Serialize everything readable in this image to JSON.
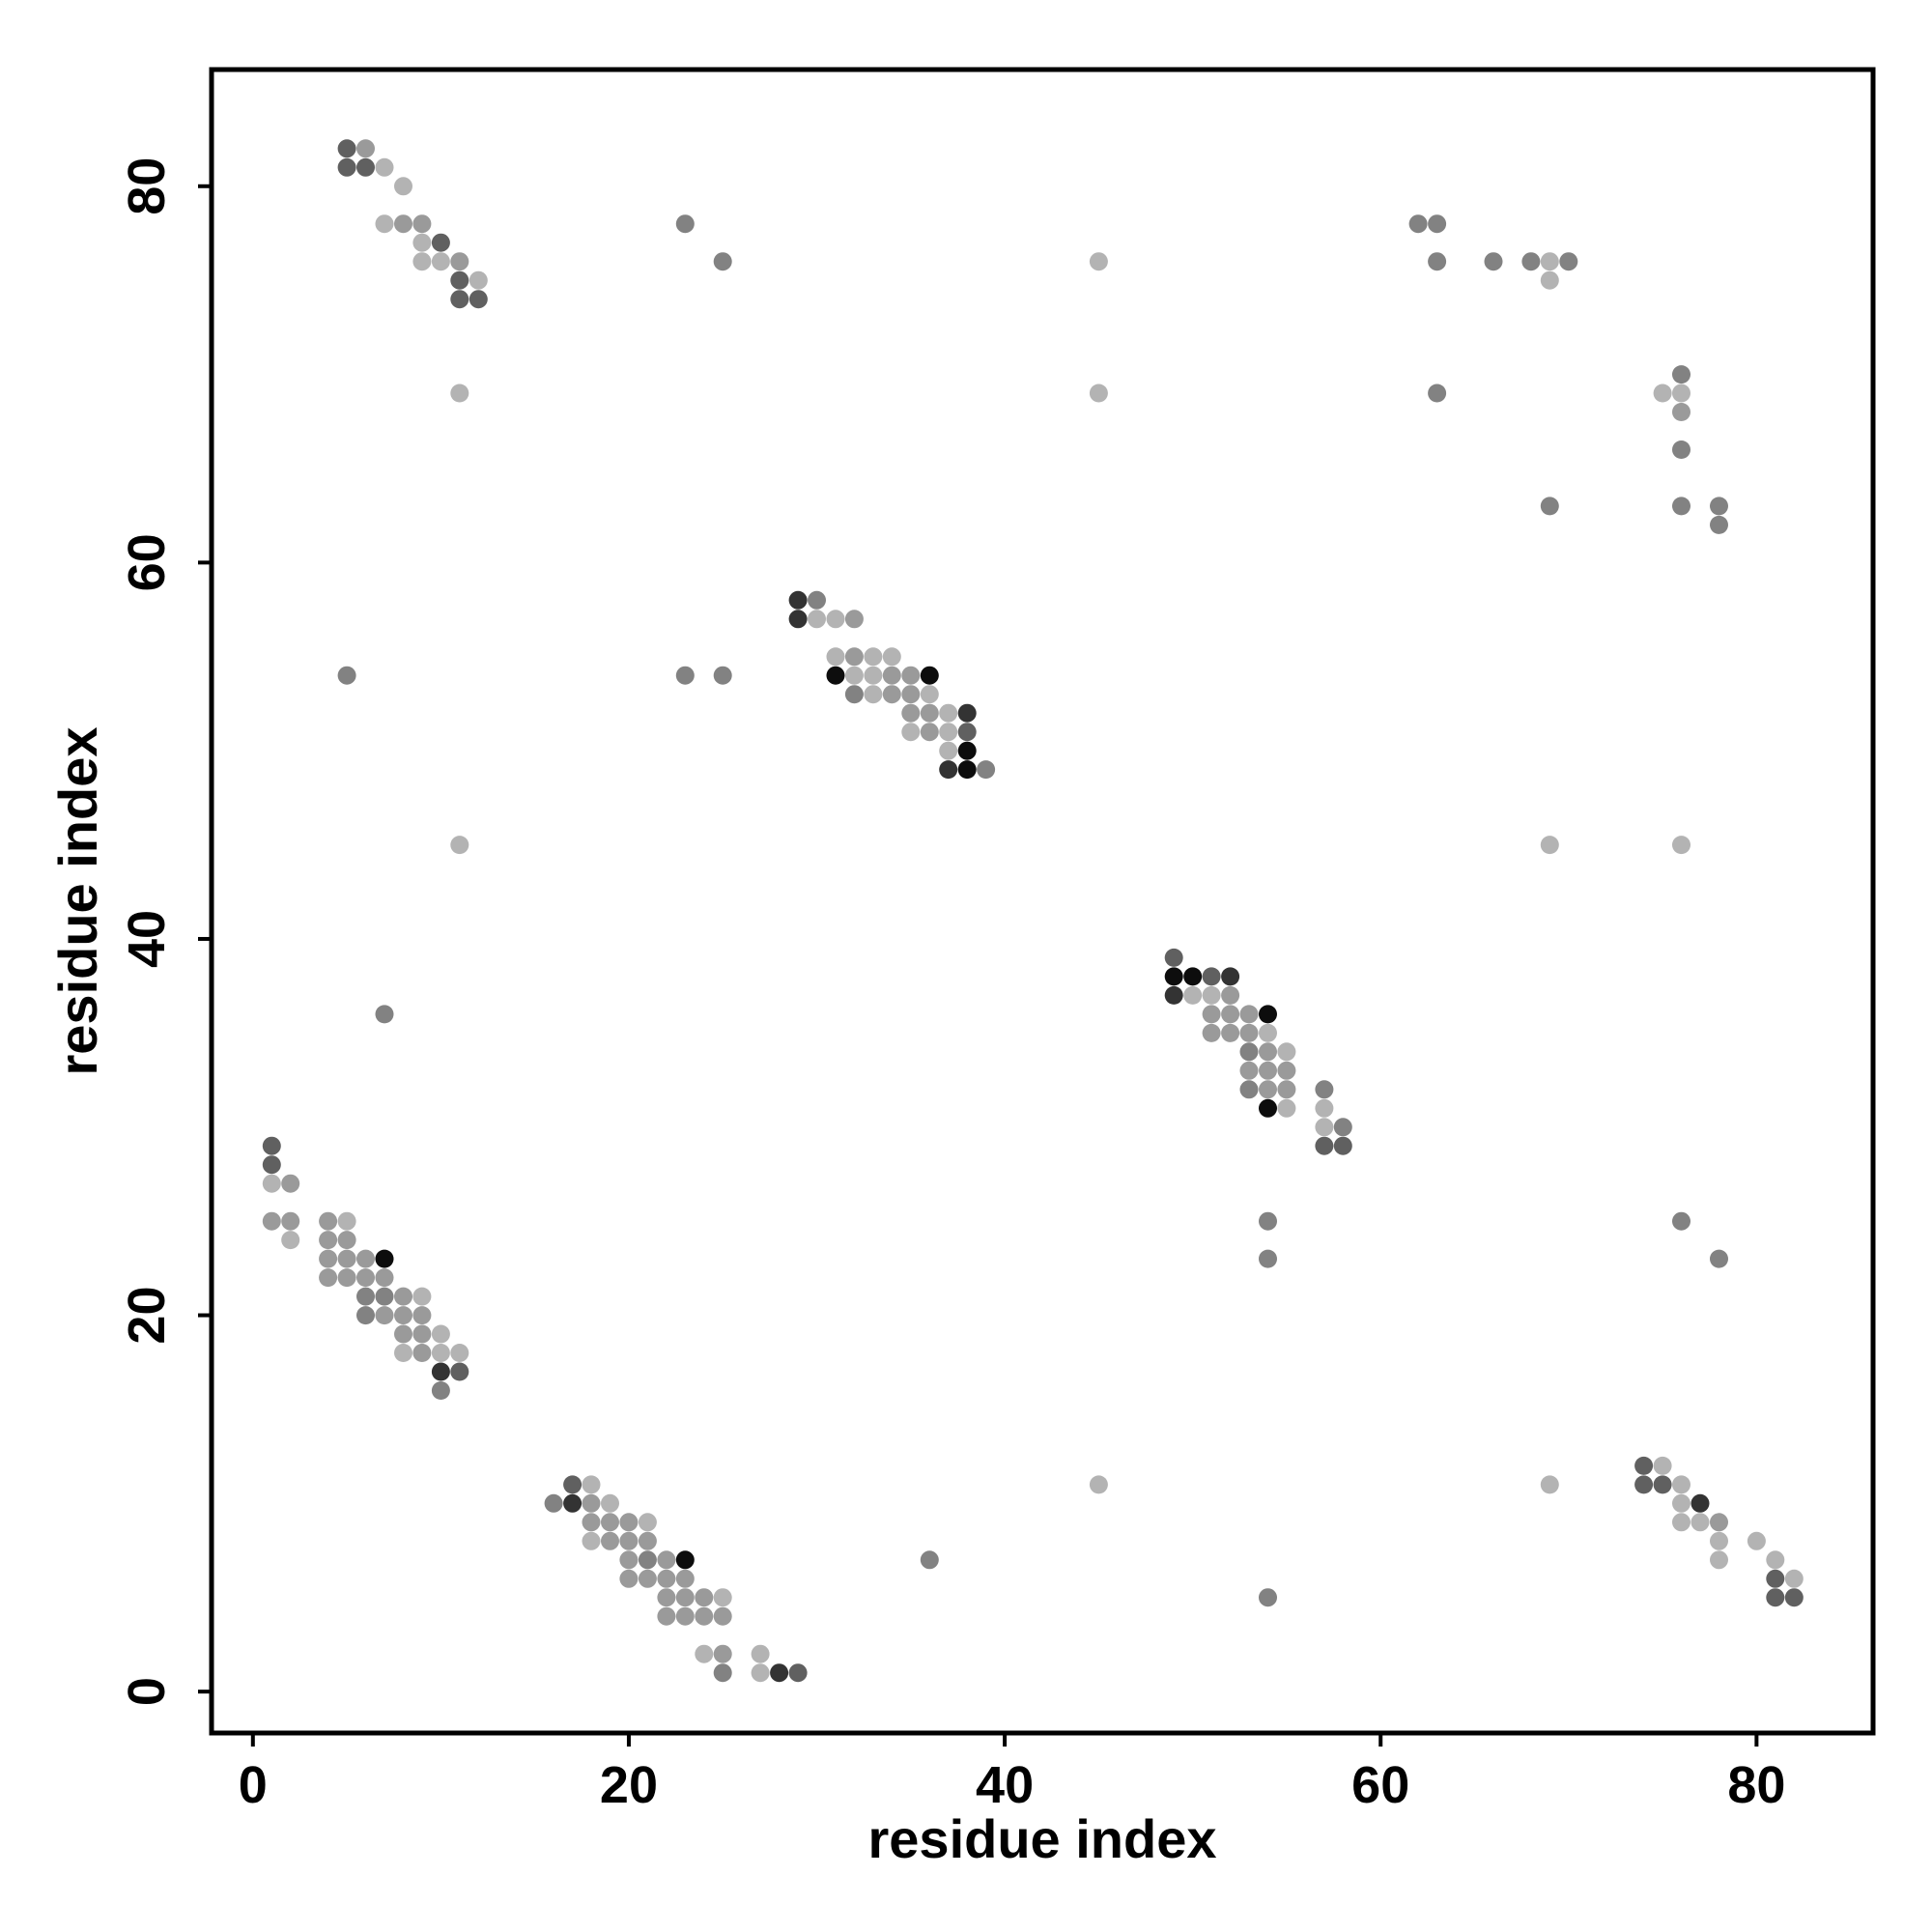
{
  "chart_data": {
    "type": "scatter",
    "title": "",
    "xlabel": "residue index",
    "ylabel": "residue index",
    "xlim": [
      -2.2,
      86.2
    ],
    "ylim": [
      -2.2,
      86.2
    ],
    "x_ticks": [
      0,
      20,
      40,
      60,
      80
    ],
    "y_ticks": [
      0,
      20,
      40,
      60,
      80
    ],
    "x_tick_labels": [
      "0",
      "20",
      "40",
      "60",
      "80"
    ],
    "y_tick_labels": [
      "0",
      "20",
      "40",
      "60",
      "80"
    ],
    "grid": false,
    "legend": "none",
    "shade_colors": {
      "1": "#b3b3b3",
      "2": "#9a9a9a",
      "3": "#828282",
      "4": "#606060",
      "5": "#333333",
      "6": "#0d0d0d"
    },
    "points": [
      [
        5,
        82,
        4
      ],
      [
        6,
        82,
        2
      ],
      [
        5,
        81,
        4
      ],
      [
        6,
        81,
        4
      ],
      [
        7,
        81,
        1
      ],
      [
        8,
        80,
        1
      ],
      [
        7,
        78,
        1
      ],
      [
        8,
        78,
        2
      ],
      [
        9,
        78,
        2
      ],
      [
        9,
        77,
        1
      ],
      [
        10,
        77,
        4
      ],
      [
        9,
        76,
        1
      ],
      [
        10,
        76,
        1
      ],
      [
        11,
        76,
        2
      ],
      [
        11,
        75,
        4
      ],
      [
        12,
        75,
        1
      ],
      [
        11,
        74,
        4
      ],
      [
        12,
        74,
        4
      ],
      [
        11,
        69,
        1
      ],
      [
        5,
        54,
        3
      ],
      [
        11,
        45,
        1
      ],
      [
        7,
        36,
        3
      ],
      [
        1,
        29,
        4
      ],
      [
        1,
        28,
        4
      ],
      [
        1,
        27,
        1
      ],
      [
        2,
        27,
        2
      ],
      [
        1,
        25,
        2
      ],
      [
        2,
        25,
        2
      ],
      [
        2,
        24,
        1
      ],
      [
        4,
        25,
        2
      ],
      [
        5,
        25,
        1
      ],
      [
        4,
        24,
        2
      ],
      [
        5,
        24,
        2
      ],
      [
        4,
        23,
        2
      ],
      [
        5,
        23,
        2
      ],
      [
        6,
        23,
        2
      ],
      [
        7,
        23,
        6
      ],
      [
        4,
        22,
        2
      ],
      [
        5,
        22,
        2
      ],
      [
        6,
        22,
        2
      ],
      [
        7,
        22,
        2
      ],
      [
        6,
        21,
        3
      ],
      [
        7,
        21,
        3
      ],
      [
        8,
        21,
        2
      ],
      [
        9,
        21,
        1
      ],
      [
        6,
        20,
        3
      ],
      [
        7,
        20,
        2
      ],
      [
        8,
        20,
        2
      ],
      [
        9,
        20,
        2
      ],
      [
        8,
        19,
        2
      ],
      [
        9,
        19,
        2
      ],
      [
        10,
        19,
        1
      ],
      [
        8,
        18,
        1
      ],
      [
        9,
        18,
        2
      ],
      [
        10,
        18,
        1
      ],
      [
        11,
        18,
        1
      ],
      [
        10,
        17,
        5
      ],
      [
        11,
        17,
        4
      ],
      [
        10,
        16,
        3
      ],
      [
        16,
        10,
        3
      ],
      [
        17,
        11,
        4
      ],
      [
        17,
        10,
        5
      ],
      [
        18,
        11,
        1
      ],
      [
        18,
        10,
        2
      ],
      [
        19,
        10,
        1
      ],
      [
        18,
        9,
        2
      ],
      [
        19,
        9,
        2
      ],
      [
        20,
        9,
        2
      ],
      [
        21,
        9,
        1
      ],
      [
        18,
        8,
        1
      ],
      [
        19,
        8,
        2
      ],
      [
        20,
        8,
        2
      ],
      [
        21,
        8,
        2
      ],
      [
        20,
        7,
        2
      ],
      [
        21,
        7,
        3
      ],
      [
        22,
        7,
        2
      ],
      [
        23,
        7,
        6
      ],
      [
        20,
        6,
        2
      ],
      [
        21,
        6,
        2
      ],
      [
        22,
        6,
        2
      ],
      [
        23,
        6,
        2
      ],
      [
        22,
        5,
        2
      ],
      [
        23,
        5,
        2
      ],
      [
        24,
        5,
        2
      ],
      [
        25,
        5,
        1
      ],
      [
        22,
        4,
        2
      ],
      [
        23,
        4,
        2
      ],
      [
        24,
        4,
        2
      ],
      [
        25,
        4,
        2
      ],
      [
        24,
        2,
        1
      ],
      [
        25,
        2,
        2
      ],
      [
        25,
        1,
        3
      ],
      [
        27,
        2,
        1
      ],
      [
        27,
        1,
        1
      ],
      [
        28,
        1,
        5
      ],
      [
        29,
        1,
        4
      ],
      [
        23,
        78,
        3
      ],
      [
        25,
        76,
        3
      ],
      [
        23,
        54,
        3
      ],
      [
        25,
        54,
        3
      ],
      [
        29,
        58,
        5
      ],
      [
        30,
        58,
        3
      ],
      [
        29,
        57,
        5
      ],
      [
        30,
        57,
        1
      ],
      [
        31,
        57,
        1
      ],
      [
        32,
        57,
        2
      ],
      [
        31,
        55,
        1
      ],
      [
        32,
        55,
        2
      ],
      [
        33,
        55,
        1
      ],
      [
        34,
        55,
        1
      ],
      [
        31,
        54,
        6
      ],
      [
        32,
        54,
        1
      ],
      [
        33,
        54,
        1
      ],
      [
        34,
        54,
        2
      ],
      [
        35,
        54,
        2
      ],
      [
        36,
        54,
        6
      ],
      [
        32,
        53,
        3
      ],
      [
        33,
        53,
        1
      ],
      [
        34,
        53,
        2
      ],
      [
        35,
        53,
        2
      ],
      [
        36,
        53,
        1
      ],
      [
        35,
        52,
        2
      ],
      [
        36,
        52,
        2
      ],
      [
        37,
        52,
        1
      ],
      [
        38,
        52,
        5
      ],
      [
        35,
        51,
        1
      ],
      [
        36,
        51,
        2
      ],
      [
        37,
        51,
        1
      ],
      [
        38,
        51,
        4
      ],
      [
        37,
        50,
        1
      ],
      [
        38,
        50,
        6
      ],
      [
        37,
        49,
        5
      ],
      [
        38,
        49,
        6
      ],
      [
        39,
        49,
        3
      ],
      [
        36,
        7,
        3
      ],
      [
        45,
        76,
        1
      ],
      [
        45,
        69,
        1
      ],
      [
        45,
        11,
        1
      ],
      [
        49,
        39,
        4
      ],
      [
        49,
        38,
        6
      ],
      [
        50,
        38,
        6
      ],
      [
        51,
        38,
        4
      ],
      [
        52,
        38,
        5
      ],
      [
        49,
        37,
        5
      ],
      [
        50,
        37,
        1
      ],
      [
        51,
        37,
        1
      ],
      [
        52,
        37,
        2
      ],
      [
        51,
        36,
        2
      ],
      [
        52,
        36,
        2
      ],
      [
        53,
        36,
        2
      ],
      [
        54,
        36,
        6
      ],
      [
        51,
        35,
        2
      ],
      [
        52,
        35,
        2
      ],
      [
        53,
        35,
        2
      ],
      [
        54,
        35,
        1
      ],
      [
        53,
        34,
        3
      ],
      [
        54,
        34,
        2
      ],
      [
        55,
        34,
        1
      ],
      [
        53,
        33,
        2
      ],
      [
        54,
        33,
        2
      ],
      [
        55,
        33,
        2
      ],
      [
        53,
        32,
        3
      ],
      [
        54,
        32,
        2
      ],
      [
        55,
        32,
        2
      ],
      [
        54,
        31,
        6
      ],
      [
        55,
        31,
        1
      ],
      [
        57,
        32,
        3
      ],
      [
        57,
        31,
        1
      ],
      [
        57,
        30,
        1
      ],
      [
        58,
        30,
        3
      ],
      [
        57,
        29,
        4
      ],
      [
        58,
        29,
        4
      ],
      [
        54,
        25,
        3
      ],
      [
        54,
        23,
        3
      ],
      [
        54,
        5,
        3
      ],
      [
        62,
        78,
        3
      ],
      [
        63,
        78,
        3
      ],
      [
        63,
        76,
        3
      ],
      [
        66,
        76,
        3
      ],
      [
        68,
        76,
        3
      ],
      [
        69,
        76,
        1
      ],
      [
        70,
        76,
        3
      ],
      [
        69,
        75,
        1
      ],
      [
        63,
        69,
        3
      ],
      [
        69,
        63,
        3
      ],
      [
        69,
        45,
        1
      ],
      [
        69,
        11,
        1
      ],
      [
        76,
        70,
        3
      ],
      [
        75,
        69,
        1
      ],
      [
        76,
        69,
        1
      ],
      [
        76,
        68,
        2
      ],
      [
        76,
        66,
        3
      ],
      [
        76,
        63,
        3
      ],
      [
        78,
        63,
        3
      ],
      [
        78,
        62,
        3
      ],
      [
        76,
        45,
        1
      ],
      [
        76,
        25,
        3
      ],
      [
        78,
        23,
        3
      ],
      [
        74,
        12,
        4
      ],
      [
        75,
        12,
        1
      ],
      [
        74,
        11,
        4
      ],
      [
        75,
        11,
        4
      ],
      [
        76,
        11,
        1
      ],
      [
        76,
        10,
        1
      ],
      [
        77,
        10,
        5
      ],
      [
        76,
        9,
        1
      ],
      [
        77,
        9,
        1
      ],
      [
        78,
        9,
        2
      ],
      [
        78,
        8,
        1
      ],
      [
        80,
        8,
        1
      ],
      [
        78,
        7,
        1
      ],
      [
        81,
        7,
        1
      ],
      [
        81,
        6,
        4
      ],
      [
        82,
        6,
        1
      ],
      [
        81,
        5,
        4
      ],
      [
        82,
        5,
        4
      ]
    ]
  }
}
